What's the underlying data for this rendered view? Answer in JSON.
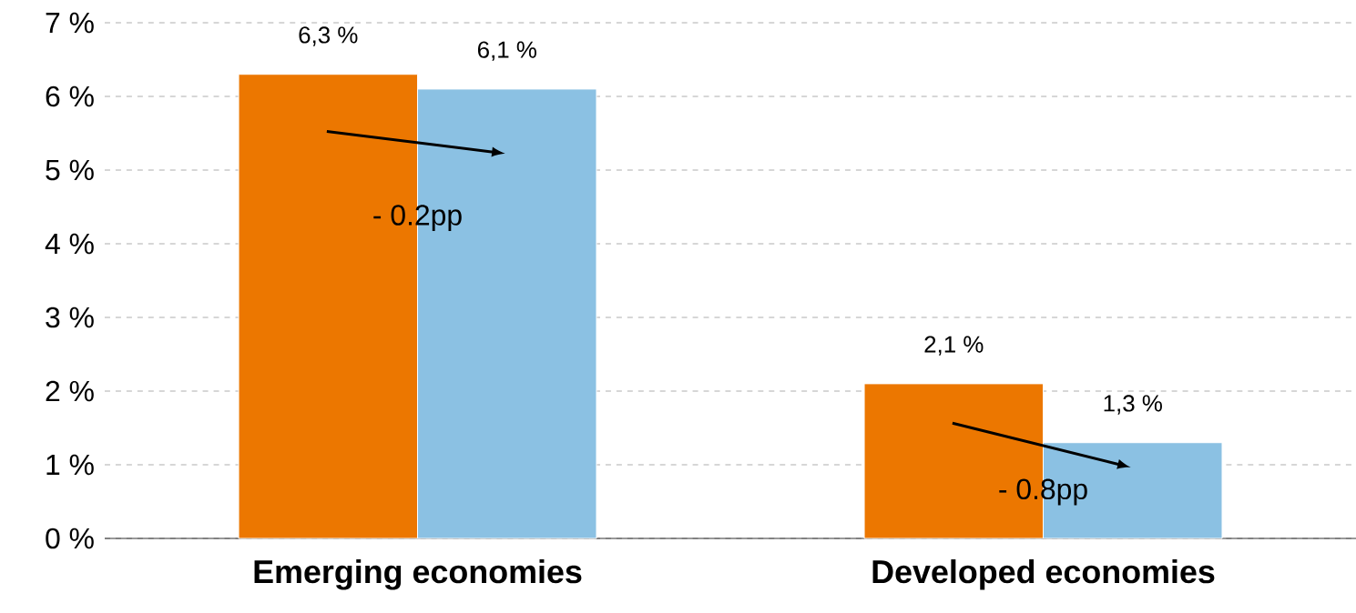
{
  "chart_data": {
    "type": "bar",
    "categories": [
      "Emerging economies",
      "Developed economies"
    ],
    "series": [
      {
        "color": "#ec7700",
        "values": [
          6.3,
          2.1
        ],
        "value_labels": [
          "6,3 %",
          "2,1 %"
        ]
      },
      {
        "color": "#8bc1e3",
        "values": [
          6.1,
          1.3
        ],
        "value_labels": [
          "6,1 %",
          "1,3 %"
        ]
      }
    ],
    "ylim": [
      0,
      7
    ],
    "yticks": [
      {
        "value": 0,
        "label": "0 %"
      },
      {
        "value": 1,
        "label": "1 %"
      },
      {
        "value": 2,
        "label": "2 %"
      },
      {
        "value": 3,
        "label": "3 %"
      },
      {
        "value": 4,
        "label": "4 %"
      },
      {
        "value": 5,
        "label": "5 %"
      },
      {
        "value": 6,
        "label": "6 %"
      },
      {
        "value": 7,
        "label": "7 %"
      }
    ],
    "grid": "y",
    "line_style": "dashed",
    "annotations": [
      {
        "text": "- 0.2pp",
        "x": "Emerging economies",
        "y": 4.35
      },
      {
        "text": "- 0.8pp",
        "x": "Developed economies",
        "y": 0.63
      }
    ]
  }
}
